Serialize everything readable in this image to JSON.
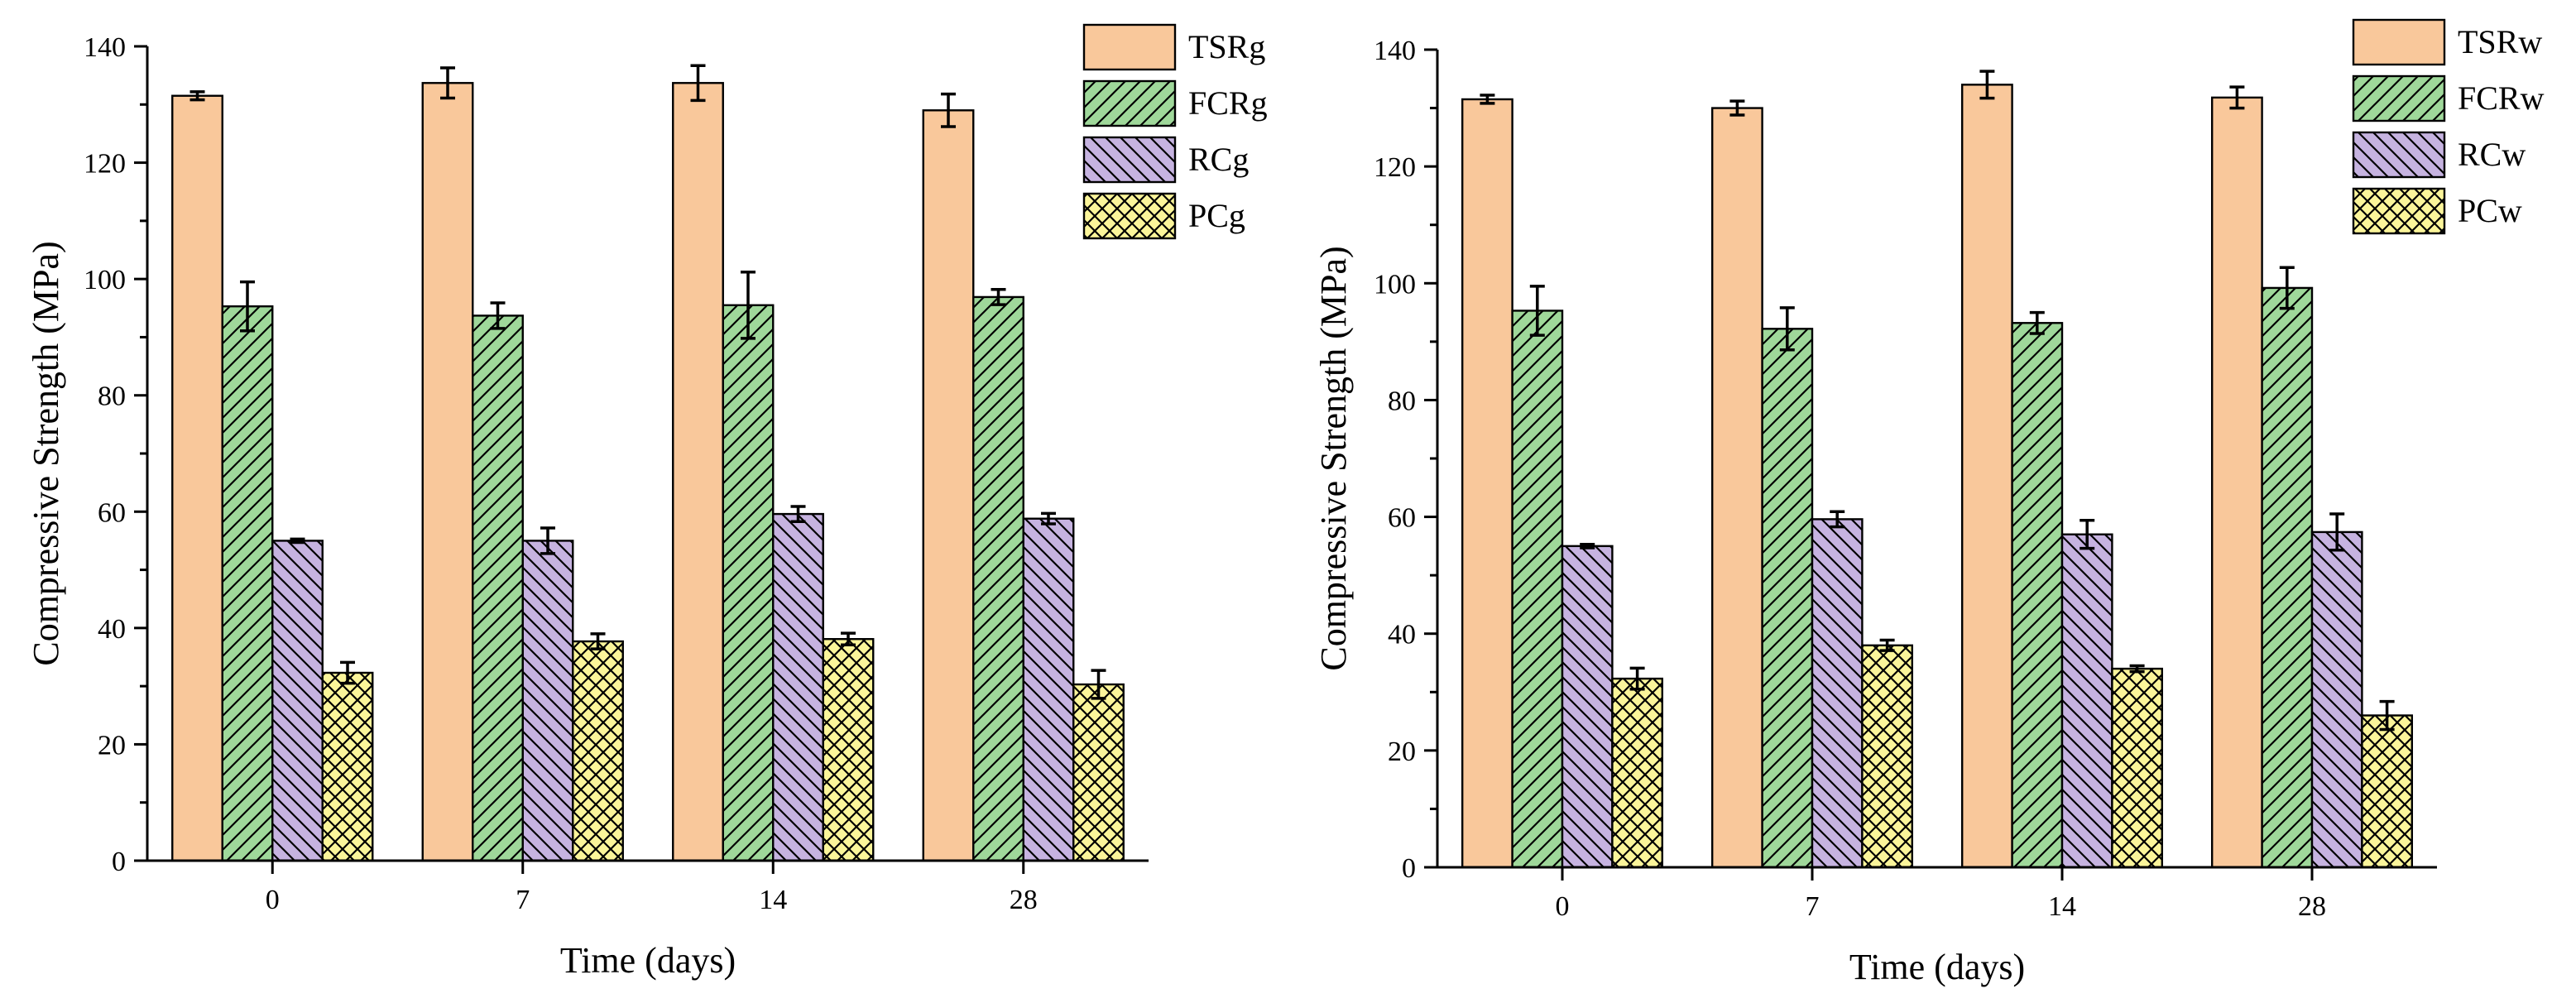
{
  "chart_data": [
    {
      "type": "bar",
      "xlabel": "Time (days)",
      "ylabel": "Compressive Strength (MPa)",
      "categories": [
        "0",
        "7",
        "14",
        "28"
      ],
      "ylim": [
        0,
        140
      ],
      "yticks": [
        "0",
        "20",
        "40",
        "60",
        "80",
        "100",
        "120",
        "140"
      ],
      "legend_position": "top-right",
      "grid": false,
      "series": [
        {
          "name": "TSRg",
          "values": [
            131.5,
            133.7,
            133.7,
            129.0
          ],
          "errors": [
            0.7,
            2.6,
            3.0,
            2.8
          ],
          "color": "#f9c89b",
          "pattern": "solid"
        },
        {
          "name": "FCRg",
          "values": [
            95.3,
            93.7,
            95.5,
            96.9
          ],
          "errors": [
            4.2,
            2.2,
            5.7,
            1.3
          ],
          "color": "#9fd89a",
          "pattern": "forward-diagonal"
        },
        {
          "name": "RCg",
          "values": [
            55.0,
            55.0,
            59.6,
            58.8
          ],
          "errors": [
            0.3,
            2.2,
            1.3,
            0.9
          ],
          "color": "#c6b3e0",
          "pattern": "back-diagonal"
        },
        {
          "name": "PCg",
          "values": [
            32.3,
            37.7,
            38.1,
            30.3
          ],
          "errors": [
            1.8,
            1.3,
            1.0,
            2.4
          ],
          "color": "#fbf59a",
          "pattern": "crosshatch"
        }
      ]
    },
    {
      "type": "bar",
      "xlabel": "Time (days)",
      "ylabel": "Compressive Strength (MPa)",
      "categories": [
        "0",
        "7",
        "14",
        "28"
      ],
      "ylim": [
        0,
        140
      ],
      "yticks": [
        "0",
        "20",
        "40",
        "60",
        "80",
        "100",
        "120",
        "140"
      ],
      "legend_position": "top-right",
      "grid": false,
      "series": [
        {
          "name": "TSRw",
          "values": [
            131.5,
            130.0,
            134.0,
            131.8
          ],
          "errors": [
            0.7,
            1.2,
            2.3,
            1.8
          ],
          "color": "#f9c89b",
          "pattern": "solid"
        },
        {
          "name": "FCRw",
          "values": [
            95.3,
            92.2,
            93.2,
            99.2
          ],
          "errors": [
            4.2,
            3.6,
            1.8,
            3.5
          ],
          "color": "#9fd89a",
          "pattern": "forward-diagonal"
        },
        {
          "name": "RCw",
          "values": [
            55.0,
            59.6,
            57.0,
            57.4
          ],
          "errors": [
            0.3,
            1.3,
            2.4,
            3.1
          ],
          "color": "#c6b3e0",
          "pattern": "back-diagonal"
        },
        {
          "name": "PCw",
          "values": [
            32.3,
            38.0,
            34.0,
            26.0
          ],
          "errors": [
            1.8,
            0.9,
            0.5,
            2.4
          ],
          "color": "#fbf59a",
          "pattern": "crosshatch"
        }
      ]
    }
  ]
}
